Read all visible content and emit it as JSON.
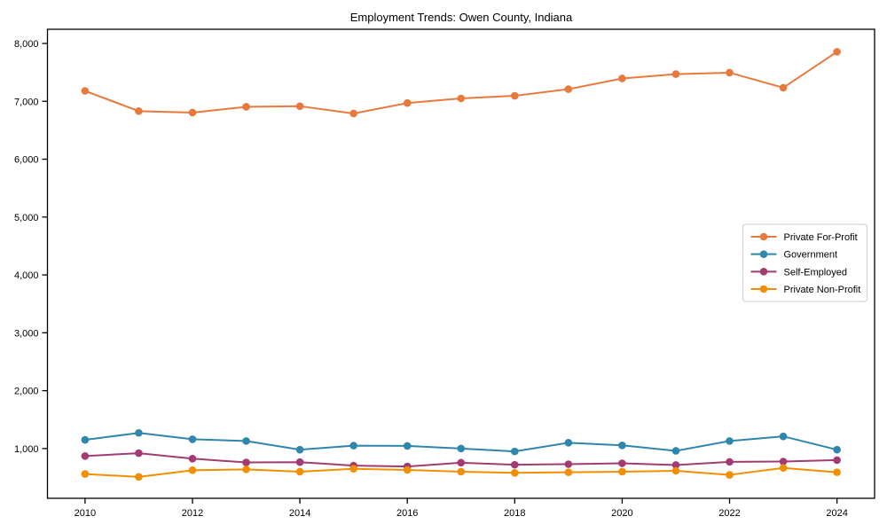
{
  "chart_data": {
    "type": "line",
    "title": "Employment Trends: Owen County, Indiana",
    "xlabel": "",
    "ylabel": "",
    "x": [
      2010,
      2011,
      2012,
      2013,
      2014,
      2015,
      2016,
      2017,
      2018,
      2019,
      2020,
      2021,
      2022,
      2023,
      2024
    ],
    "xticks": [
      2010,
      2012,
      2014,
      2016,
      2018,
      2020,
      2022,
      2024
    ],
    "xtick_labels": [
      "2010",
      "2012",
      "2014",
      "2016",
      "2018",
      "2020",
      "2022",
      "2024"
    ],
    "yticks": [
      1000,
      2000,
      3000,
      4000,
      5000,
      6000,
      7000,
      8000
    ],
    "ytick_labels": [
      "1,000",
      "2,000",
      "3,000",
      "4,000",
      "5,000",
      "6,000",
      "7,000",
      "8,000"
    ],
    "xlim": [
      2009.3,
      2024.7
    ],
    "ylim": [
      140,
      8245
    ],
    "grid": false,
    "legend_position": "center right",
    "marker": "circle",
    "axis_color": "#000000",
    "legend_border_color": "#cccccc",
    "series": [
      {
        "name": "Private For-Profit",
        "color": "#E8793D",
        "values": [
          7180,
          6830,
          6805,
          6905,
          6915,
          6790,
          6970,
          7050,
          7095,
          7210,
          7395,
          7470,
          7495,
          7235,
          7855
        ]
      },
      {
        "name": "Government",
        "color": "#2E86AB",
        "values": [
          1150,
          1270,
          1160,
          1130,
          980,
          1050,
          1045,
          1000,
          950,
          1100,
          1055,
          960,
          1130,
          1210,
          980
        ]
      },
      {
        "name": "Self-Employed",
        "color": "#A23B72",
        "values": [
          870,
          920,
          825,
          760,
          765,
          705,
          690,
          755,
          720,
          730,
          745,
          715,
          770,
          775,
          800
        ]
      },
      {
        "name": "Private Non-Profit",
        "color": "#F18F01",
        "values": [
          560,
          510,
          625,
          640,
          600,
          650,
          630,
          600,
          580,
          590,
          600,
          615,
          545,
          665,
          590
        ]
      }
    ]
  }
}
